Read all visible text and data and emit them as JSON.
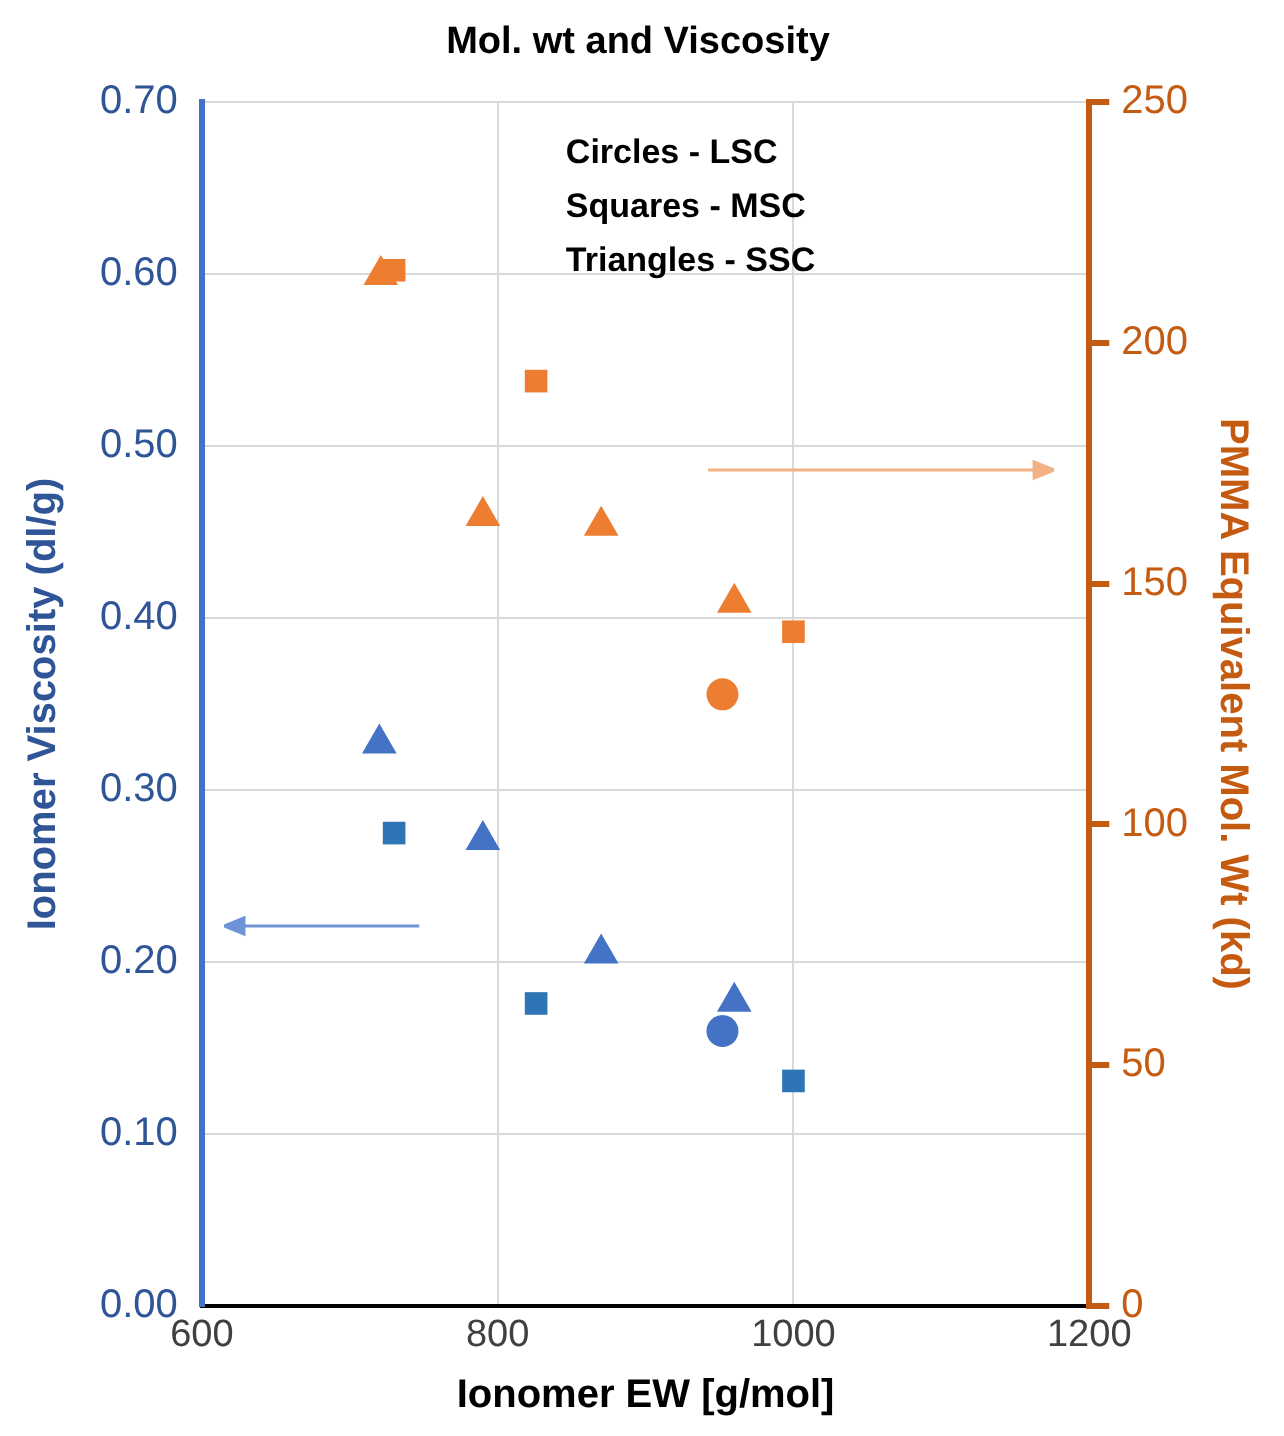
{
  "chart_data": {
    "type": "scatter",
    "title": "Mol. wt and Viscosity",
    "xlabel": "Ionomer EW [g/mol]",
    "ylabel": "Ionomer Viscosity (dl/g)",
    "y2label": "PMMA Equivalent Mol. Wt (kd)",
    "annotations": [
      "Circles - LSC",
      "Squares - MSC",
      "Triangles - SSC"
    ],
    "grid": true,
    "legend": false,
    "xlim": [
      600,
      1200
    ],
    "xticks": [
      600,
      800,
      1000,
      1200
    ],
    "ylim": [
      0,
      0.7
    ],
    "yticks": [
      {
        "value": 0,
        "label": "0.00"
      },
      {
        "value": 0.1,
        "label": "0.10"
      },
      {
        "value": 0.2,
        "label": "0.20"
      },
      {
        "value": 0.3,
        "label": "0.30"
      },
      {
        "value": 0.4,
        "label": "0.40"
      },
      {
        "value": 0.5,
        "label": "0.50"
      },
      {
        "value": 0.6,
        "label": "0.60"
      },
      {
        "value": 0.7,
        "label": "0.70"
      }
    ],
    "y2lim": [
      0,
      250
    ],
    "y2ticks": [
      0,
      50,
      100,
      150,
      200,
      250
    ],
    "series": [
      {
        "color": "#4472c4",
        "marker": "circle",
        "x": [
          952
        ],
        "values": [
          0.16
        ]
      },
      {
        "color": "#2e75b6",
        "marker": "square",
        "x": [
          730,
          826,
          1000
        ],
        "values": [
          0.275,
          0.176,
          0.131
        ]
      },
      {
        "color": "#4472c4",
        "marker": "triangle",
        "x": [
          720,
          790,
          870,
          960
        ],
        "values": [
          0.327,
          0.271,
          0.205,
          0.177
        ]
      },
      {
        "color": "#ed7d31",
        "marker": "circle",
        "axis": "y2",
        "x": [
          952
        ],
        "values": [
          127
        ]
      },
      {
        "color": "#ed7d31",
        "marker": "square",
        "axis": "y2",
        "x": [
          730,
          826,
          1000
        ],
        "values": [
          215,
          192,
          140
        ]
      },
      {
        "color": "#ed7d31",
        "marker": "triangle",
        "axis": "y2",
        "x": [
          721,
          790,
          870,
          960
        ],
        "values": [
          214,
          164,
          162,
          146
        ]
      }
    ]
  }
}
